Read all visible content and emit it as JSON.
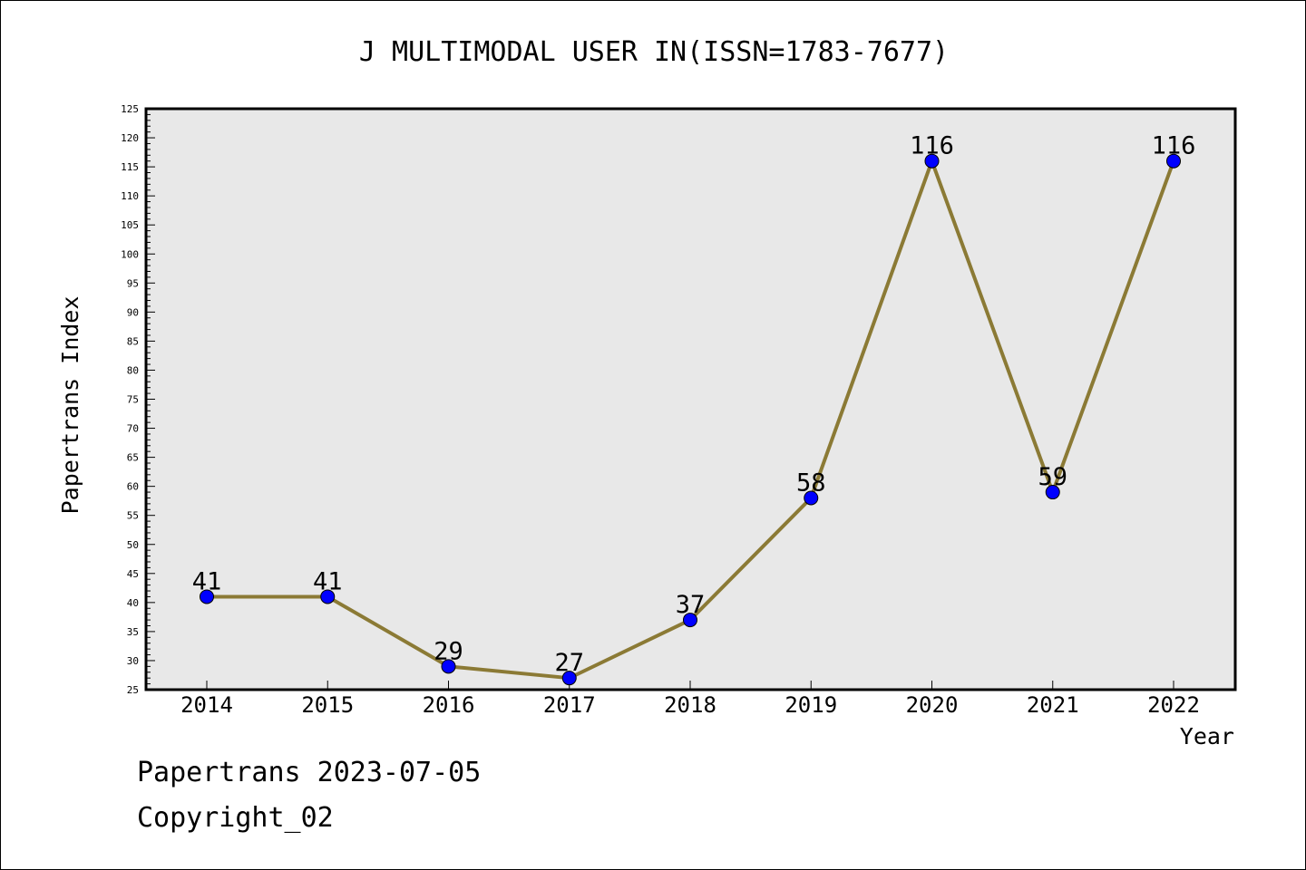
{
  "chart_data": {
    "type": "line",
    "title": "J MULTIMODAL USER IN(ISSN=1783-7677)",
    "xlabel": "Year",
    "ylabel": "Papertrans Index",
    "x": [
      "2014",
      "2015",
      "2016",
      "2017",
      "2018",
      "2019",
      "2020",
      "2021",
      "2022"
    ],
    "series": [
      {
        "values": [
          41,
          41,
          29,
          27,
          37,
          58,
          116,
          59,
          116
        ]
      }
    ],
    "data_labels": [
      "41",
      "41",
      "29",
      "27",
      "37",
      "58",
      "116",
      "59",
      "116"
    ],
    "ylim": [
      25,
      125
    ],
    "ytick_labels": [
      "25",
      "30",
      "35",
      "40",
      "45",
      "50",
      "55",
      "60",
      "65",
      "70",
      "75",
      "80",
      "85",
      "90",
      "95",
      "100",
      "105",
      "110",
      "115",
      "120",
      "125"
    ],
    "grid": false,
    "legend": "none",
    "colors": {
      "line": "#8b7a35",
      "marker_fill": "#0000ff",
      "plot_background": "#e8e8e8",
      "axes": "#000000"
    }
  },
  "footer": {
    "source": "Papertrans 2023-07-05",
    "copyright": "Copyright_02"
  }
}
